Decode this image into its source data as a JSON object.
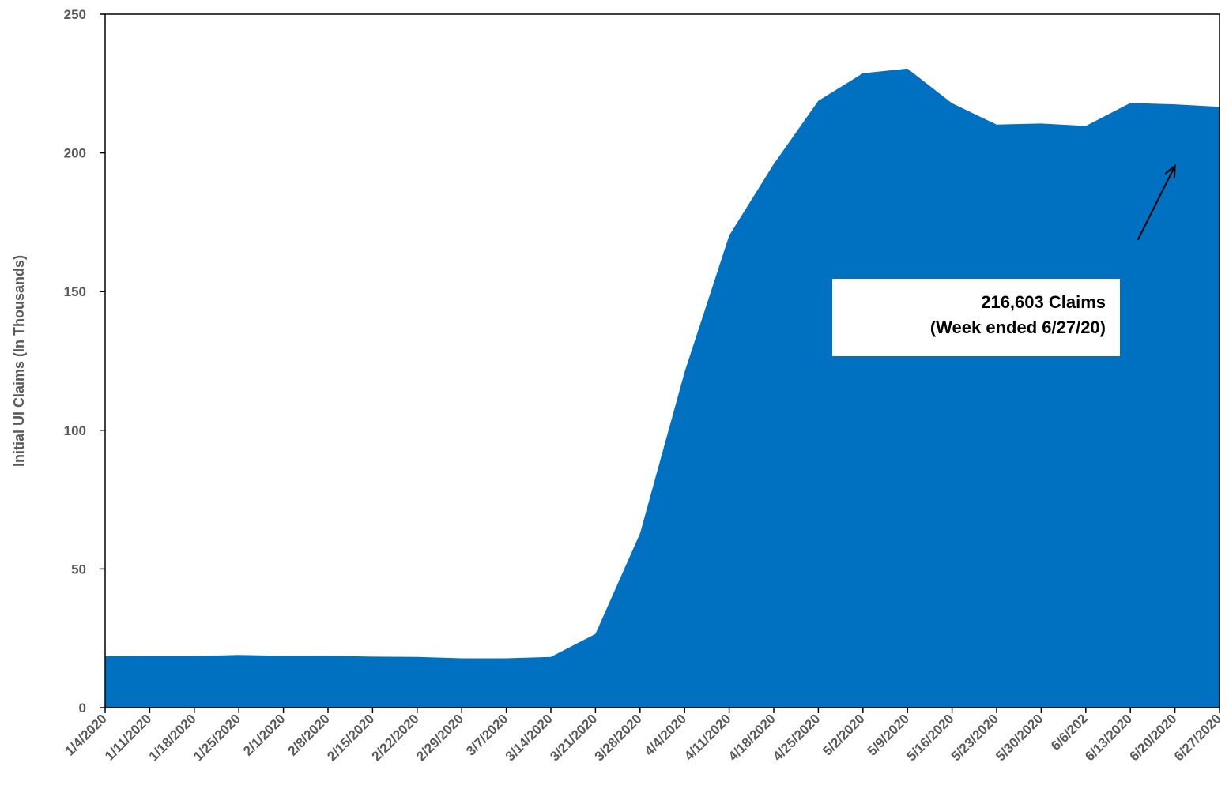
{
  "chart_data": {
    "type": "area",
    "ylabel": "Initial UI Claims (In Thousands)",
    "xlabel": "",
    "ylim": [
      0,
      250
    ],
    "yticks": [
      0,
      50,
      100,
      150,
      200,
      250
    ],
    "grid": false,
    "x": [
      "1/4/2020",
      "1/11/2020",
      "1/18/2020",
      "1/25/2020",
      "2/1/2020",
      "2/8/2020",
      "2/15/2020",
      "2/22/2020",
      "2/29/2020",
      "3/7/2020",
      "3/14/2020",
      "3/21/2020",
      "3/28/2020",
      "4/4/2020",
      "4/11/2020",
      "4/18/2020",
      "4/25/2020",
      "5/2/2020",
      "5/9/2020",
      "5/16/2020",
      "5/23/2020",
      "5/30/2020",
      "6/6/202",
      "6/13/2020",
      "6/20/2020",
      "6/27/2020"
    ],
    "series": [
      {
        "color": "#0070C0",
        "values": [
          18.5,
          18.6,
          18.6,
          19.0,
          18.7,
          18.7,
          18.4,
          18.3,
          17.8,
          17.8,
          18.3,
          26.6,
          62.8,
          121.0,
          170.2,
          196.0,
          218.8,
          228.7,
          230.4,
          217.9,
          210.2,
          210.6,
          209.7,
          218.0,
          217.5,
          216.6
        ]
      }
    ],
    "annotations": [
      {
        "lines": [
          "216,603 Claims",
          "(Week ended 6/27/20)"
        ],
        "points_to": "6/20/2020"
      }
    ]
  }
}
